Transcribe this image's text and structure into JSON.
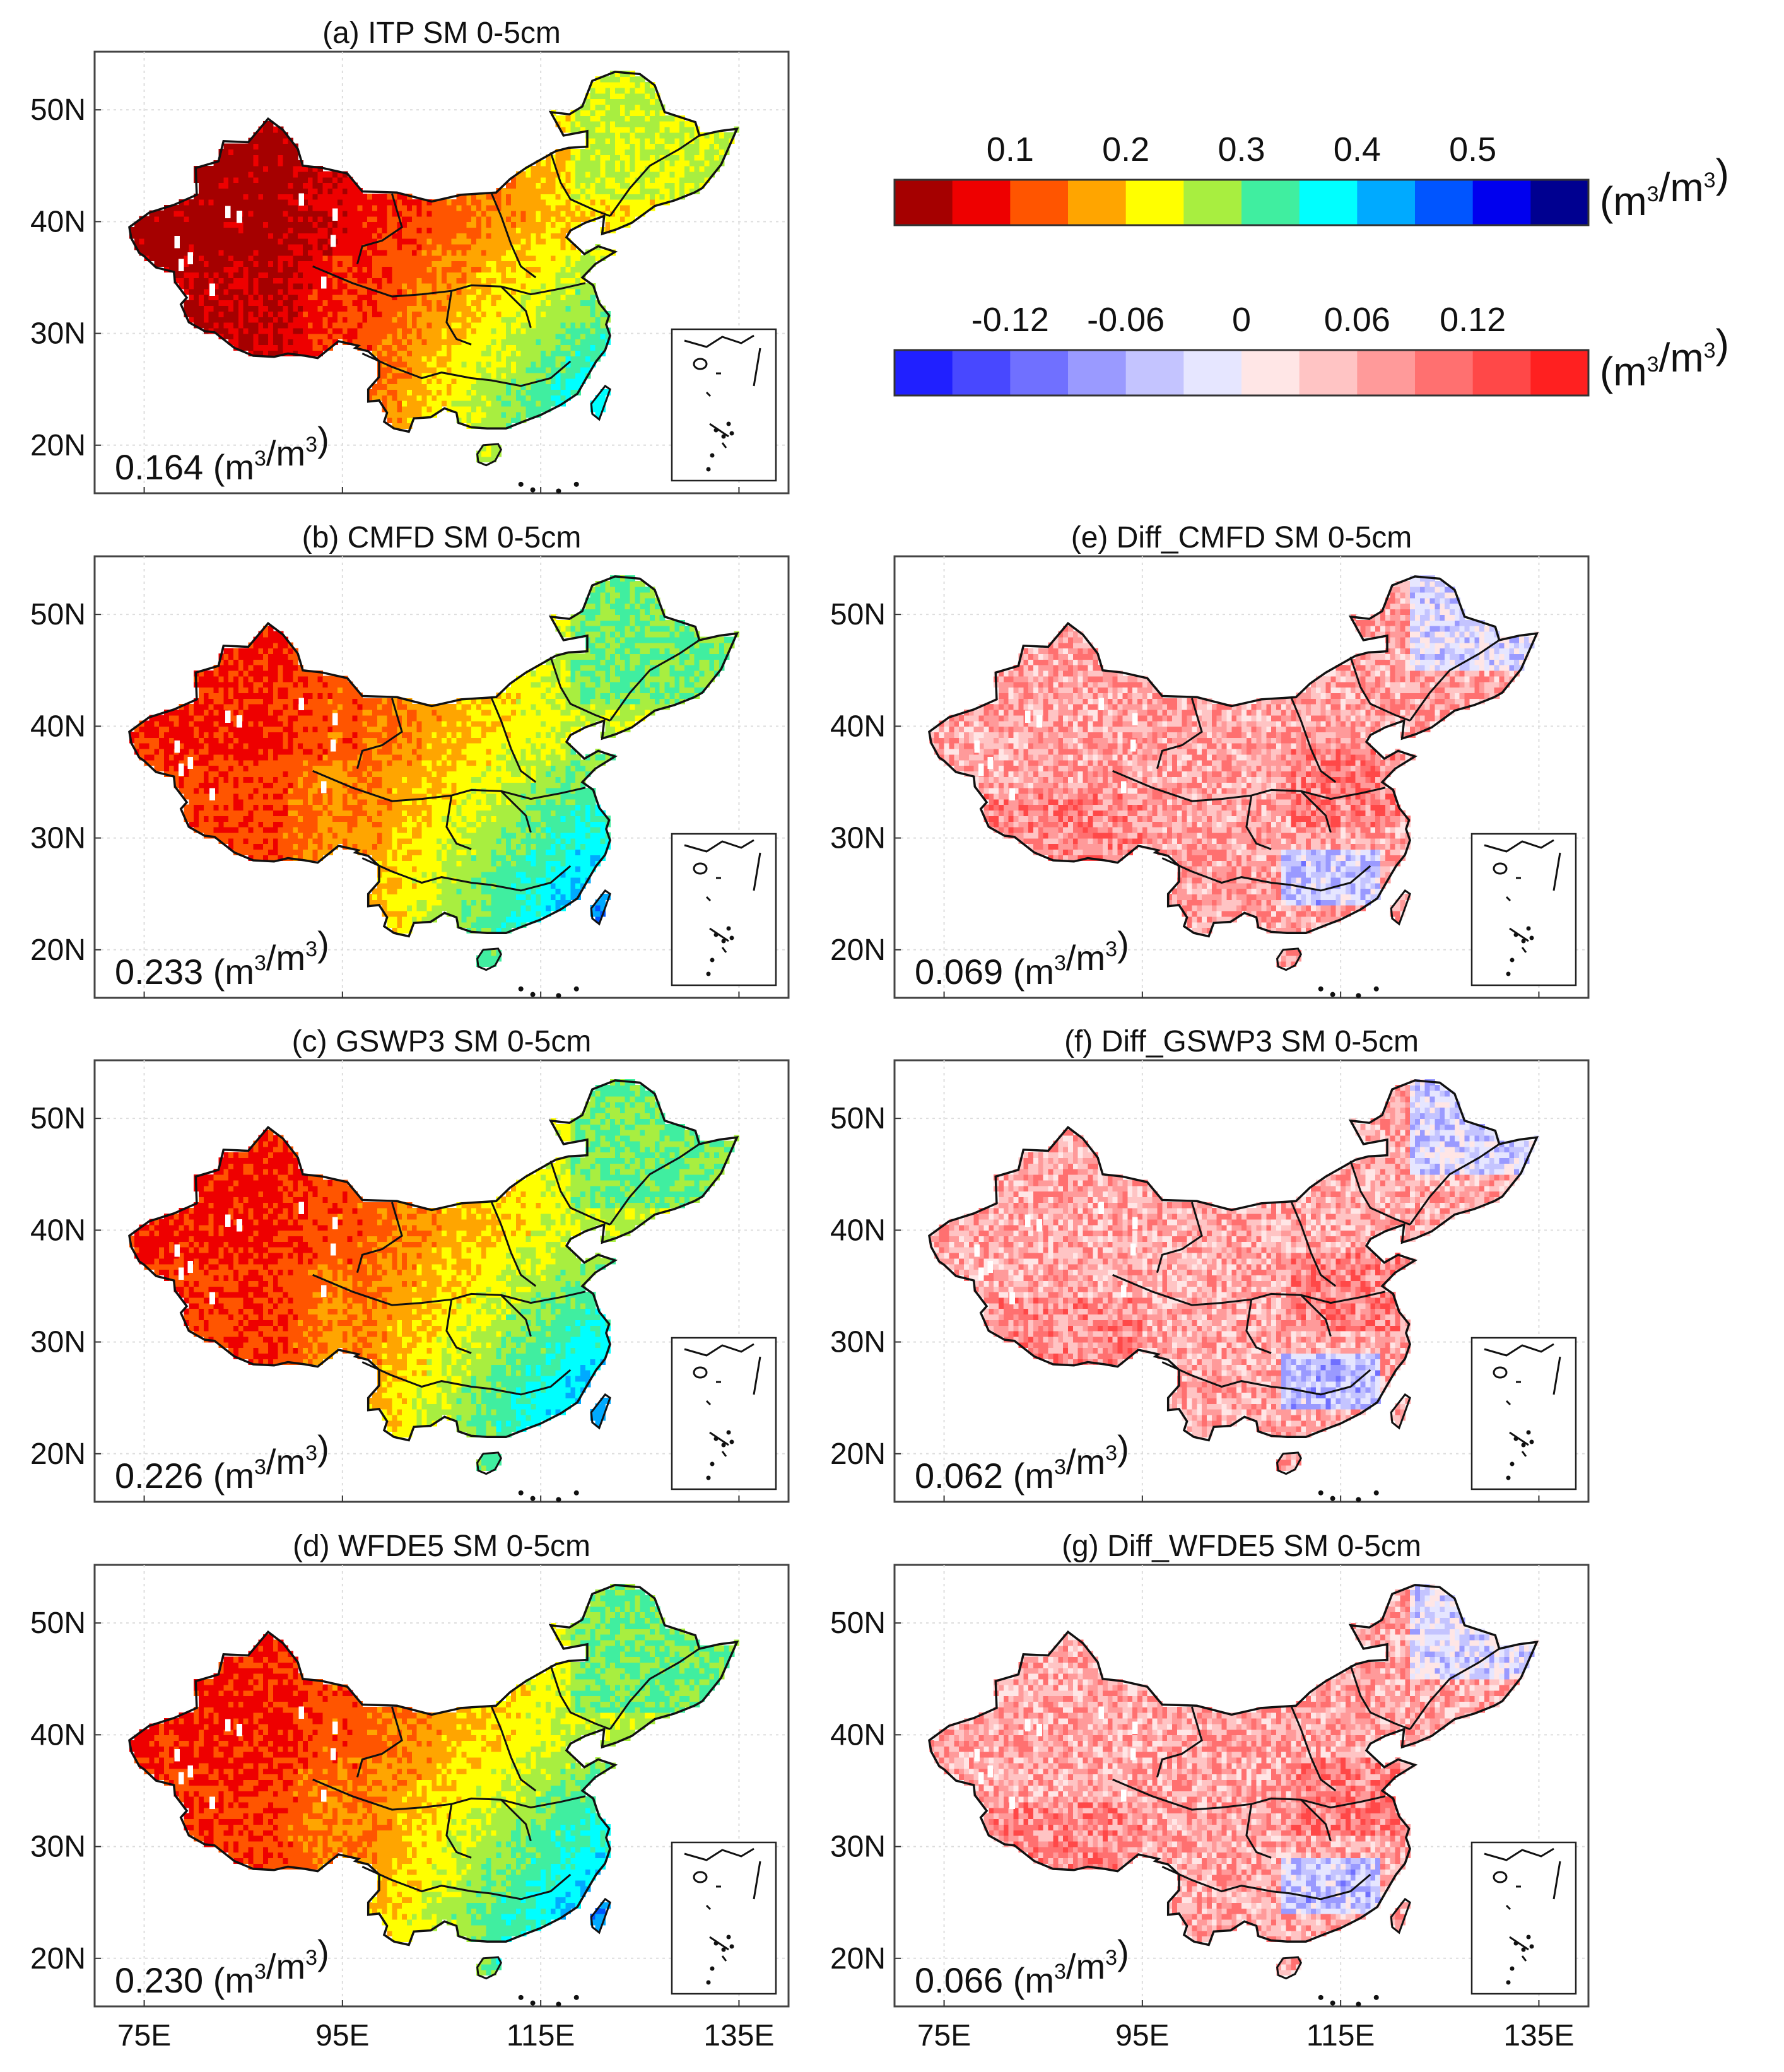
{
  "figure": {
    "type": "map-panels",
    "lat_ticks": [
      "50N",
      "40N",
      "30N",
      "20N"
    ],
    "lon_ticks": [
      "75E",
      "95E",
      "115E",
      "135E"
    ],
    "panels": [
      {
        "id": "a",
        "title": "(a) ITP SM 0-5cm",
        "mean_value": "0.164",
        "unit_base": "m",
        "unit_sup": "3",
        "kind": "sm",
        "wetness": 0.0
      },
      {
        "id": "b",
        "title": "(b) CMFD SM 0-5cm",
        "mean_value": "0.233",
        "unit_base": "m",
        "unit_sup": "3",
        "kind": "sm",
        "wetness": 0.55
      },
      {
        "id": "c",
        "title": "(c) GSWP3 SM 0-5cm",
        "mean_value": "0.226",
        "unit_base": "m",
        "unit_sup": "3",
        "kind": "sm",
        "wetness": 0.5
      },
      {
        "id": "d",
        "title": "(d) WFDE5 SM 0-5cm",
        "mean_value": "0.230",
        "unit_base": "m",
        "unit_sup": "3",
        "kind": "sm",
        "wetness": 0.52
      },
      {
        "id": "e",
        "title": "(e) Diff_CMFD SM 0-5cm",
        "mean_value": "0.069",
        "unit_base": "m",
        "unit_sup": "3",
        "kind": "diff",
        "bias": 0.069
      },
      {
        "id": "f",
        "title": "(f) Diff_GSWP3 SM 0-5cm",
        "mean_value": "0.062",
        "unit_base": "m",
        "unit_sup": "3",
        "kind": "diff",
        "bias": 0.062
      },
      {
        "id": "g",
        "title": "(g) Diff_WFDE5 SM 0-5cm",
        "mean_value": "0.066",
        "unit_base": "m",
        "unit_sup": "3",
        "kind": "diff",
        "bias": 0.066
      }
    ]
  },
  "colorbars": {
    "sm": {
      "tick_labels": [
        "0.1",
        "0.2",
        "0.3",
        "0.4",
        "0.5"
      ],
      "unit_text": "(m3/m3)",
      "colors": [
        "#a50000",
        "#ee0000",
        "#ff5500",
        "#ffa500",
        "#ffff00",
        "#a8ee40",
        "#40eea0",
        "#00ffff",
        "#00aaff",
        "#0055ff",
        "#0000ee",
        "#000090"
      ]
    },
    "diff": {
      "tick_labels": [
        "-0.12",
        "-0.06",
        "0",
        "0.06",
        "0.12"
      ],
      "unit_text": "(m3/m3)",
      "colors": [
        "#2020ff",
        "#4848ff",
        "#7070ff",
        "#9a9aff",
        "#c4c4ff",
        "#e6e6ff",
        "#ffe6e6",
        "#ffc4c4",
        "#ff9a9a",
        "#ff7070",
        "#ff4848",
        "#ff2020"
      ]
    }
  },
  "unit_parts": {
    "open": "(m",
    "sup1": "3",
    "mid": "/m",
    "sup2": "3",
    "close": ")"
  }
}
